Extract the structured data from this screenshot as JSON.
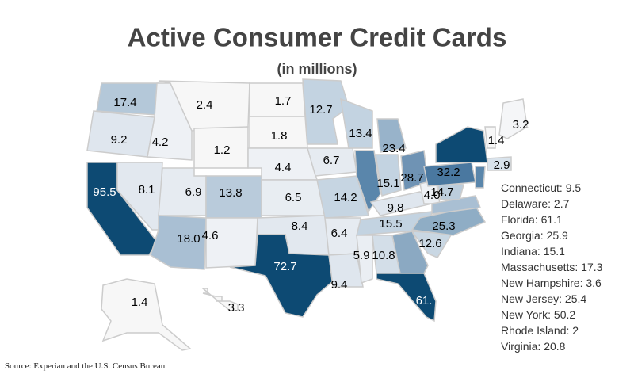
{
  "title": "Active Consumer Credit Cards",
  "subtitle": "(in millions)",
  "source": "Source: Experian and the U.S. Census Bureau",
  "regions": [
    {
      "value": 17.4,
      "color": "#b4c8d9"
    },
    {
      "value": 9.2,
      "color": "#dfe6ee"
    },
    {
      "value": 4.2,
      "color": "#eef1f5"
    },
    {
      "value": 2.4,
      "color": "#f7f7f7"
    },
    {
      "value": 1.2,
      "color": "#f7f7f7"
    },
    {
      "value": 1.7,
      "color": "#f7f7f7"
    },
    {
      "value": 1.8,
      "color": "#f7f7f7"
    },
    {
      "value": 4.4,
      "color": "#eef1f5"
    },
    {
      "value": 95.5,
      "color": "#0d4a73",
      "label_color": "#ffffff"
    },
    {
      "value": 8.1,
      "color": "#e2e8ef"
    },
    {
      "value": 6.9,
      "color": "#e6ebf1"
    },
    {
      "value": 13.8,
      "color": "#b9cbdb"
    },
    {
      "value": 18,
      "value_label": "18.0",
      "color": "#a9bfd3"
    },
    {
      "value": 4.6,
      "color": "#eef1f5"
    },
    {
      "value": 6.5,
      "color": "#e8edf2"
    },
    {
      "value": 8.4,
      "color": "#e2e8ef"
    },
    {
      "value": 72.7,
      "color": "#0d4a73",
      "label_color": "#ffffff"
    },
    {
      "value": 12.7,
      "color": "#c3d3e1"
    },
    {
      "value": 6.7,
      "color": "#e6ebf1"
    },
    {
      "value": 14.2,
      "color": "#c6d5e2"
    },
    {
      "value": 6.4,
      "color": "#e6ebf1"
    },
    {
      "value": 9.4,
      "color": "#dfe6ee"
    },
    {
      "value": 13.4,
      "color": "#c3d3e1"
    },
    {
      "value": null,
      "color": "#5a86ab"
    },
    {
      "value": 23.4,
      "color": "#98b3ca"
    },
    {
      "value": 15.1,
      "color": "#c3d3e1"
    },
    {
      "value": 28.7,
      "color": "#6f93b4"
    },
    {
      "value": 9.8,
      "color": "#dfe6ee"
    },
    {
      "value": 15.5,
      "color": "#c3d3e1"
    },
    {
      "value": 5.9,
      "color": "#eaeef3"
    },
    {
      "value": 10.8,
      "color": "#d3dee8"
    },
    {
      "value": null,
      "color": "#8ba9c2"
    },
    {
      "value": 12.6,
      "color": "#c9d7e3"
    },
    {
      "value": 25.3,
      "color": "#8fadc5"
    },
    {
      "value": 4,
      "value_label": "4.0",
      "color": "#eef1f5"
    },
    {
      "value": null,
      "color": "#a9bfd3"
    },
    {
      "value": 14.7,
      "color": "#bccddc"
    },
    {
      "value": 32.2,
      "color": "#4a78a0"
    },
    {
      "value": null,
      "color": "#0d4a73"
    },
    {
      "value": 1.4,
      "color": "#f7f7f7"
    },
    {
      "value": 3.2,
      "color": "#f5f6f8"
    },
    {
      "value": null,
      "color": "#5a86ab"
    },
    {
      "value": 2.9,
      "color": "#d9e3ec"
    },
    {
      "value": 1.4,
      "color": "#f7f7f7"
    },
    {
      "value": 3.3,
      "color": "#f7f7f7"
    },
    {
      "value": 61.1,
      "value_label": "61.",
      "color": "#0d4a73",
      "label_color": "#ffffff"
    }
  ],
  "side_list": [
    "Connecticut: 9.5",
    "Delaware: 2.7",
    "Florida: 61.1",
    "Georgia: 25.9",
    "Indiana: 15.1",
    "Massachusetts: 17.3",
    "New Hampshire: 3.6",
    "New Jersey: 25.4",
    "New York: 50.2",
    "Rhode Island: 2",
    "Virginia: 20.8"
  ]
}
